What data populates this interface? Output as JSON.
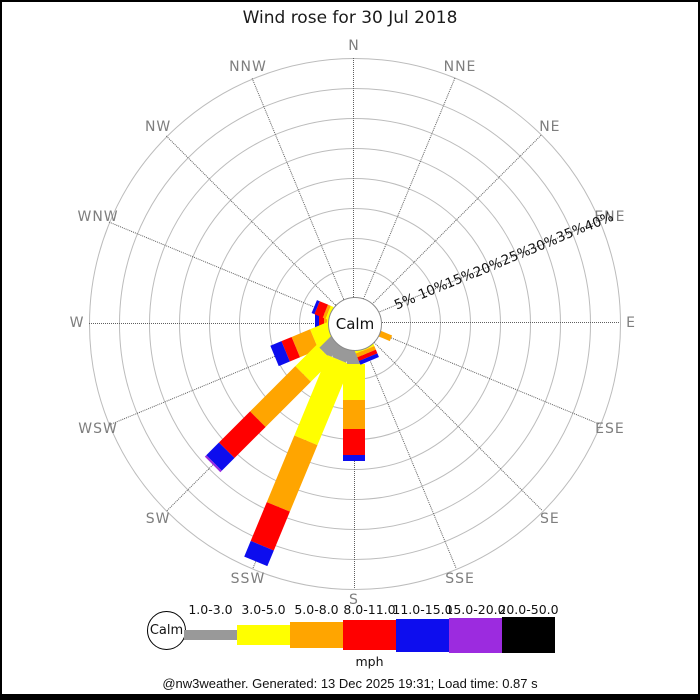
{
  "title": "Wind rose for 30 Jul 2018",
  "center_label": "Calm",
  "compass_labels": [
    "N",
    "NNE",
    "NE",
    "ENE",
    "E",
    "ESE",
    "SE",
    "SSE",
    "S",
    "SSW",
    "SW",
    "WSW",
    "W",
    "WNW",
    "NW",
    "NNW"
  ],
  "radial_ticks": [
    "5%",
    "10%",
    "15%",
    "20%",
    "25%",
    "30%",
    "35%",
    "40%"
  ],
  "colors": {
    "calm_fill": "#ffffff",
    "bin_1_3": "#999999",
    "bin_3_5": "#ffff00",
    "bin_5_8": "#ffa500",
    "bin_8_11": "#ff0000",
    "bin_11_15": "#0d0dee",
    "bin_15_20": "#9c2bdf",
    "bin_20_50": "#000000",
    "grid": "#bcbcbc",
    "spoke": "#5f5f5f",
    "compass_text": "#7e7e7e"
  },
  "legend": {
    "calm_label": "Calm",
    "units": "mph",
    "bins": [
      {
        "label": "1.0-3.0",
        "color": "#999999",
        "height": 10
      },
      {
        "label": "3.0-5.0",
        "color": "#ffff00",
        "height": 20
      },
      {
        "label": "5.0-8.0",
        "color": "#ffa500",
        "height": 26
      },
      {
        "label": "8.0-11.0",
        "color": "#ff0000",
        "height": 30
      },
      {
        "label": "11.0-15.0",
        "color": "#0d0dee",
        "height": 33
      },
      {
        "label": "15.0-20.0",
        "color": "#9c2bdf",
        "height": 35
      },
      {
        "label": "20.0-50.0",
        "color": "#000000",
        "height": 36
      }
    ]
  },
  "footer": {
    "text": "@nw3weather. Generated: 13 Dec 2025 19:31; Load time: 0.87 s"
  },
  "chart_data": {
    "type": "windrose-bar",
    "units": "mph",
    "ring_step_percent": 5,
    "max_percent": 40,
    "grid": "on",
    "speed_bins": [
      "1.0-3.0",
      "3.0-5.0",
      "5.0-8.0",
      "8.0-11.0",
      "11.0-15.0",
      "15.0-20.0",
      "20.0-50.0"
    ],
    "bin_colors": [
      "#999999",
      "#ffff00",
      "#ffa500",
      "#ff0000",
      "#0d0dee",
      "#9c2bdf",
      "#000000"
    ],
    "directions": [
      "N",
      "NNE",
      "NE",
      "ENE",
      "E",
      "ESE",
      "SE",
      "SSE",
      "S",
      "SSW",
      "SW",
      "WSW",
      "W",
      "WNW",
      "NW",
      "NNW"
    ],
    "series": [
      {
        "direction": "N",
        "azimuth": 0,
        "values": [
          0,
          0,
          0,
          0,
          0,
          0,
          0
        ]
      },
      {
        "direction": "NNE",
        "azimuth": 22.5,
        "values": [
          0,
          0,
          0,
          0,
          0,
          0,
          0
        ]
      },
      {
        "direction": "NE",
        "azimuth": 45,
        "values": [
          0,
          0,
          0,
          0,
          0,
          0,
          0
        ]
      },
      {
        "direction": "ENE",
        "azimuth": 67.5,
        "values": [
          0,
          0,
          0,
          0,
          0,
          0,
          0
        ]
      },
      {
        "direction": "E",
        "azimuth": 90,
        "values": [
          0,
          0,
          0,
          0,
          0,
          0,
          0
        ]
      },
      {
        "direction": "ESE",
        "azimuth": 112.5,
        "values": [
          0,
          0,
          2.5,
          0,
          0,
          0,
          0
        ]
      },
      {
        "direction": "SE",
        "azimuth": 135,
        "values": [
          0,
          0,
          0,
          0,
          0,
          0,
          0
        ]
      },
      {
        "direction": "SSE",
        "azimuth": 157.5,
        "values": [
          0,
          0.7,
          0.7,
          0.6,
          0.7,
          0,
          0
        ]
      },
      {
        "direction": "S",
        "azimuth": 180,
        "values": [
          2.7,
          6.0,
          4.8,
          4.3,
          1.0,
          0,
          0
        ]
      },
      {
        "direction": "SSW",
        "azimuth": 202.5,
        "values": [
          2.5,
          14.5,
          12.0,
          7.0,
          2.8,
          0,
          0
        ]
      },
      {
        "direction": "SW",
        "azimuth": 225,
        "values": [
          2.8,
          5.0,
          10.7,
          7.3,
          3.0,
          0.3,
          0
        ]
      },
      {
        "direction": "WSW",
        "azimuth": 247.5,
        "values": [
          0,
          3.0,
          3.3,
          1.9,
          2.0,
          0,
          0
        ]
      },
      {
        "direction": "W",
        "azimuth": 270,
        "values": [
          0,
          0.4,
          0.4,
          0.8,
          0.8,
          0,
          0
        ]
      },
      {
        "direction": "WNW",
        "azimuth": 292.5,
        "values": [
          0,
          0.5,
          0.5,
          1.5,
          0.5,
          0,
          0
        ]
      },
      {
        "direction": "NW",
        "azimuth": 315,
        "values": [
          0,
          0,
          0,
          0,
          0,
          0,
          0
        ]
      },
      {
        "direction": "NNW",
        "azimuth": 337.5,
        "values": [
          0,
          0,
          0,
          0,
          0,
          0,
          0
        ]
      }
    ]
  }
}
